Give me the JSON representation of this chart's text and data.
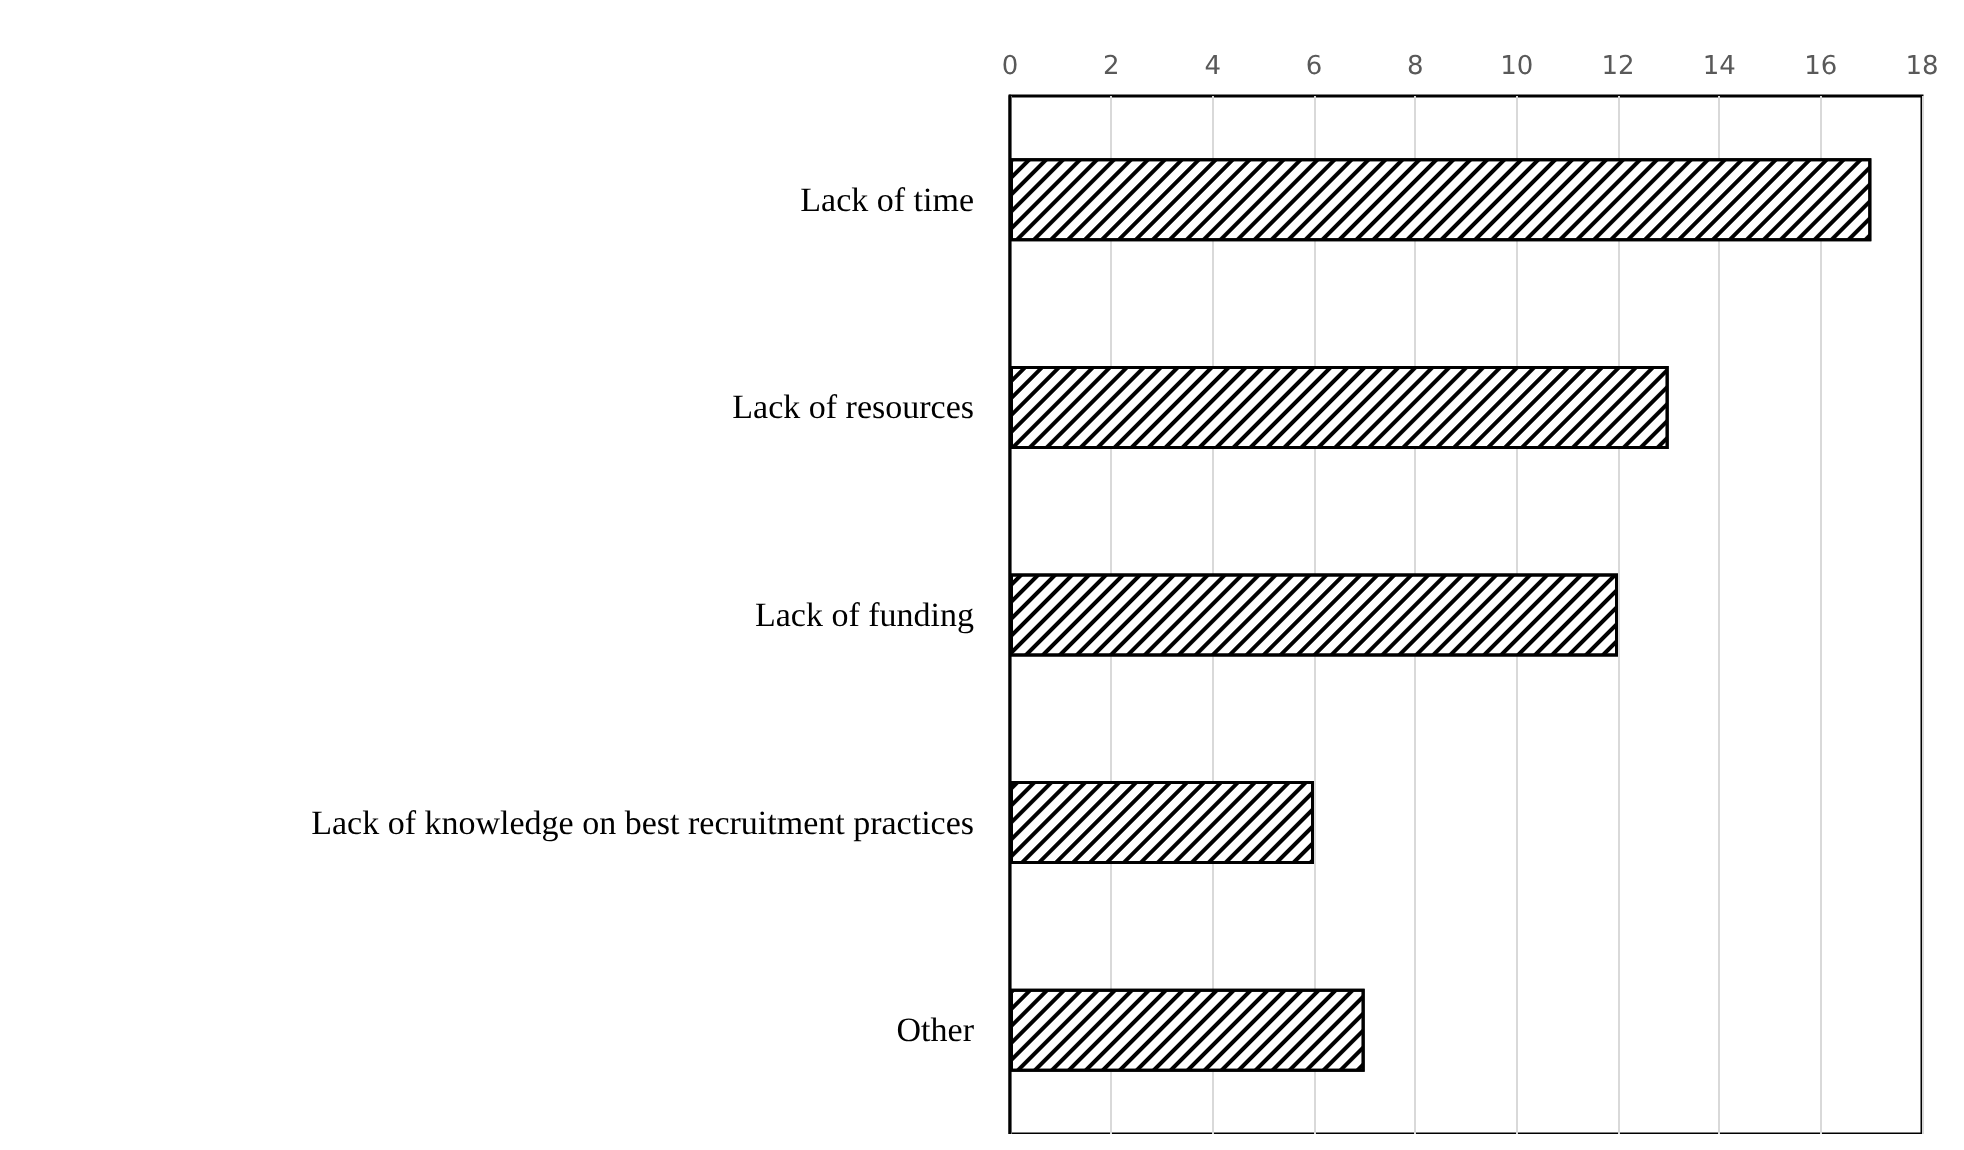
{
  "chart_data": {
    "type": "bar",
    "orientation": "horizontal",
    "categories": [
      "Lack of time",
      "Lack of resources",
      "Lack of funding",
      "Lack of knowledge on best recruitment practices",
      "Other"
    ],
    "values": [
      17,
      13,
      12,
      6,
      7
    ],
    "color": "#000000",
    "xlim": [
      0,
      18
    ],
    "xticks": [
      0,
      2,
      4,
      6,
      8,
      10,
      12,
      14,
      16,
      18
    ],
    "grid": "x"
  }
}
